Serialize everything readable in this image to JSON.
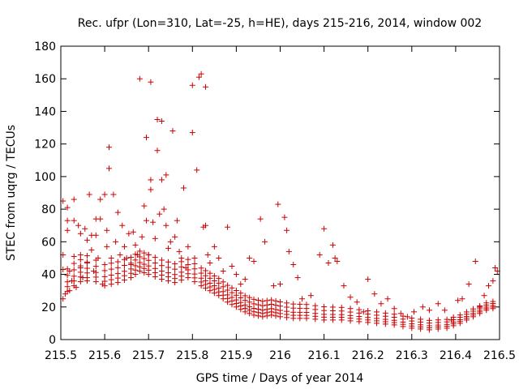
{
  "chart_data": {
    "type": "scatter",
    "title": "Rec. ufpr (Lon=310, Lat=-25, h=HE), days 215-216, 2014, window 002",
    "xlabel": "GPS time / Days of year 2014",
    "ylabel": "STEC from uqrg / TECUs",
    "xlim": [
      215.5,
      216.5
    ],
    "ylim": [
      0,
      180
    ],
    "x_ticks": [
      "215.5",
      "215.6",
      "215.7",
      "215.8",
      "215.9",
      "216",
      "216.1",
      "216.2",
      "216.3",
      "216.4",
      "216.5"
    ],
    "y_ticks": [
      "0",
      "20",
      "40",
      "60",
      "80",
      "100",
      "120",
      "140",
      "160",
      "180"
    ],
    "marker": "+",
    "series": [
      {
        "name": "STEC",
        "color": "#cc0000",
        "points": [
          [
            215.505,
            85
          ],
          [
            215.505,
            52
          ],
          [
            215.505,
            43
          ],
          [
            215.505,
            25
          ],
          [
            215.51,
            28
          ],
          [
            215.515,
            81
          ],
          [
            215.515,
            73
          ],
          [
            215.515,
            67
          ],
          [
            215.52,
            42
          ],
          [
            215.52,
            30
          ],
          [
            215.525,
            36
          ],
          [
            215.53,
            86
          ],
          [
            215.53,
            73
          ],
          [
            215.53,
            51
          ],
          [
            215.535,
            32
          ],
          [
            215.54,
            70
          ],
          [
            215.545,
            65
          ],
          [
            215.545,
            52
          ],
          [
            215.545,
            44
          ],
          [
            215.55,
            38
          ],
          [
            215.555,
            68
          ],
          [
            215.56,
            61
          ],
          [
            215.56,
            47
          ],
          [
            215.56,
            36
          ],
          [
            215.565,
            89
          ],
          [
            215.57,
            64
          ],
          [
            215.57,
            55
          ],
          [
            215.575,
            42
          ],
          [
            215.58,
            74
          ],
          [
            215.58,
            64
          ],
          [
            215.585,
            50
          ],
          [
            215.59,
            86
          ],
          [
            215.59,
            74
          ],
          [
            215.595,
            34
          ],
          [
            215.6,
            89
          ],
          [
            215.605,
            67
          ],
          [
            215.605,
            57
          ],
          [
            215.61,
            118
          ],
          [
            215.61,
            105
          ],
          [
            215.615,
            50
          ],
          [
            215.62,
            89
          ],
          [
            215.625,
            60
          ],
          [
            215.63,
            78
          ],
          [
            215.635,
            52
          ],
          [
            215.64,
            70
          ],
          [
            215.645,
            57
          ],
          [
            215.65,
            50
          ],
          [
            215.655,
            65
          ],
          [
            215.66,
            46
          ],
          [
            215.665,
            66
          ],
          [
            215.67,
            58
          ],
          [
            215.675,
            52
          ],
          [
            215.68,
            160
          ],
          [
            215.685,
            63
          ],
          [
            215.69,
            82
          ],
          [
            215.695,
            124
          ],
          [
            215.695,
            73
          ],
          [
            215.7,
            52
          ],
          [
            215.705,
            158
          ],
          [
            215.705,
            98
          ],
          [
            215.705,
            92
          ],
          [
            215.71,
            72
          ],
          [
            215.715,
            62
          ],
          [
            215.72,
            135
          ],
          [
            215.72,
            116
          ],
          [
            215.725,
            77
          ],
          [
            215.73,
            134
          ],
          [
            215.73,
            98
          ],
          [
            215.735,
            80
          ],
          [
            215.74,
            101
          ],
          [
            215.74,
            70
          ],
          [
            215.745,
            56
          ],
          [
            215.75,
            60
          ],
          [
            215.755,
            128
          ],
          [
            215.76,
            63
          ],
          [
            215.765,
            73
          ],
          [
            215.77,
            54
          ],
          [
            215.775,
            50
          ],
          [
            215.78,
            93
          ],
          [
            215.785,
            44
          ],
          [
            215.79,
            57
          ],
          [
            215.8,
            127
          ],
          [
            215.8,
            156
          ],
          [
            215.805,
            50
          ],
          [
            215.81,
            104
          ],
          [
            215.815,
            161
          ],
          [
            215.82,
            163
          ],
          [
            215.825,
            69
          ],
          [
            215.83,
            155
          ],
          [
            215.83,
            70
          ],
          [
            215.835,
            52
          ],
          [
            215.84,
            47
          ],
          [
            215.85,
            57
          ],
          [
            215.86,
            50
          ],
          [
            215.87,
            42
          ],
          [
            215.88,
            69
          ],
          [
            215.89,
            45
          ],
          [
            215.9,
            40
          ],
          [
            215.91,
            34
          ],
          [
            215.92,
            37
          ],
          [
            215.93,
            50
          ],
          [
            215.94,
            48
          ],
          [
            215.955,
            74
          ],
          [
            215.965,
            60
          ],
          [
            215.985,
            33
          ],
          [
            215.995,
            83
          ],
          [
            216.0,
            34
          ],
          [
            216.01,
            75
          ],
          [
            216.015,
            67
          ],
          [
            216.02,
            54
          ],
          [
            216.03,
            46
          ],
          [
            216.04,
            38
          ],
          [
            216.05,
            25
          ],
          [
            216.07,
            27
          ],
          [
            216.09,
            52
          ],
          [
            216.1,
            68
          ],
          [
            216.11,
            47
          ],
          [
            216.12,
            58
          ],
          [
            216.125,
            50
          ],
          [
            216.13,
            48
          ],
          [
            216.145,
            33
          ],
          [
            216.16,
            26
          ],
          [
            216.175,
            23
          ],
          [
            216.19,
            17
          ],
          [
            216.2,
            37
          ],
          [
            216.215,
            28
          ],
          [
            216.23,
            22
          ],
          [
            216.245,
            25
          ],
          [
            216.26,
            19
          ],
          [
            216.275,
            16
          ],
          [
            216.29,
            14
          ],
          [
            216.305,
            17
          ],
          [
            216.325,
            20
          ],
          [
            216.34,
            18
          ],
          [
            216.36,
            22
          ],
          [
            216.375,
            18
          ],
          [
            216.39,
            12
          ],
          [
            216.405,
            24
          ],
          [
            216.415,
            25
          ],
          [
            216.43,
            34
          ],
          [
            216.445,
            48
          ],
          [
            216.455,
            20
          ],
          [
            216.465,
            27
          ],
          [
            216.475,
            33
          ],
          [
            216.485,
            36
          ],
          [
            216.49,
            44
          ],
          [
            216.495,
            42
          ]
        ],
        "tracks": [
          [
            215.5,
            26
          ],
          [
            215.53,
            33
          ],
          [
            215.56,
            38
          ],
          [
            215.6,
            33
          ],
          [
            215.63,
            35
          ],
          [
            215.66,
            38
          ],
          [
            215.68,
            42
          ],
          [
            215.7,
            40
          ],
          [
            215.73,
            37
          ],
          [
            215.76,
            35
          ],
          [
            215.79,
            38
          ],
          [
            215.82,
            33
          ],
          [
            215.84,
            30
          ],
          [
            215.86,
            27
          ],
          [
            215.88,
            23
          ],
          [
            215.9,
            20
          ],
          [
            215.92,
            17
          ],
          [
            215.94,
            15
          ],
          [
            215.96,
            14
          ],
          [
            215.98,
            15
          ],
          [
            216.0,
            14
          ],
          [
            216.03,
            13
          ],
          [
            216.06,
            13
          ],
          [
            216.1,
            12
          ],
          [
            216.14,
            12
          ],
          [
            216.18,
            11
          ],
          [
            216.22,
            10
          ],
          [
            216.26,
            9
          ],
          [
            216.3,
            7
          ],
          [
            216.34,
            6
          ],
          [
            216.38,
            7
          ],
          [
            216.41,
            10
          ],
          [
            216.44,
            14
          ],
          [
            216.47,
            18
          ],
          [
            216.5,
            20
          ]
        ]
      }
    ]
  }
}
